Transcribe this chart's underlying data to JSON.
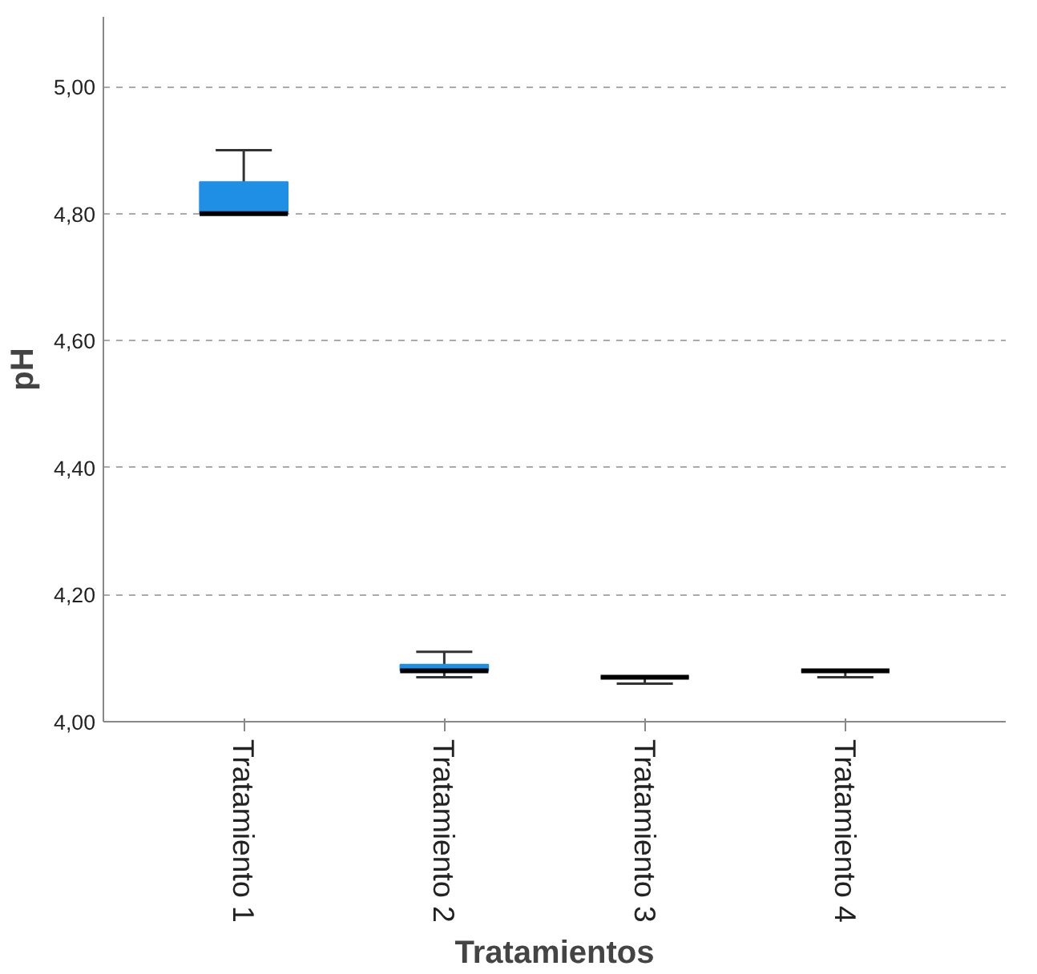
{
  "chart_data": {
    "type": "box",
    "xlabel": "Tratamientos",
    "ylabel": "pH",
    "categories": [
      "Tratamiento 1",
      "Tratamiento 2",
      "Tratamiento 3",
      "Tratamiento 4"
    ],
    "series": [
      {
        "color": "#1f8fe6",
        "boxes": [
          {
            "low": 4.8,
            "q1": 4.8,
            "median": 4.8,
            "q3": 4.85,
            "high": 4.9
          },
          {
            "low": 4.07,
            "q1": 4.08,
            "median": 4.08,
            "q3": 4.09,
            "high": 4.11
          },
          {
            "low": 4.06,
            "q1": 4.07,
            "median": 4.07,
            "q3": 4.07,
            "high": 4.07
          },
          {
            "low": 4.07,
            "q1": 4.08,
            "median": 4.08,
            "q3": 4.08,
            "high": 4.08
          }
        ]
      }
    ],
    "ylim": [
      4.0,
      5.11
    ],
    "yticks": [
      {
        "value": 4.0,
        "label": "4,00"
      },
      {
        "value": 4.2,
        "label": "4,20"
      },
      {
        "value": 4.4,
        "label": "4,40"
      },
      {
        "value": 4.6,
        "label": "4,60"
      },
      {
        "value": 4.8,
        "label": "4,80"
      },
      {
        "value": 5.0,
        "label": "5,00"
      }
    ],
    "grid": "y"
  }
}
